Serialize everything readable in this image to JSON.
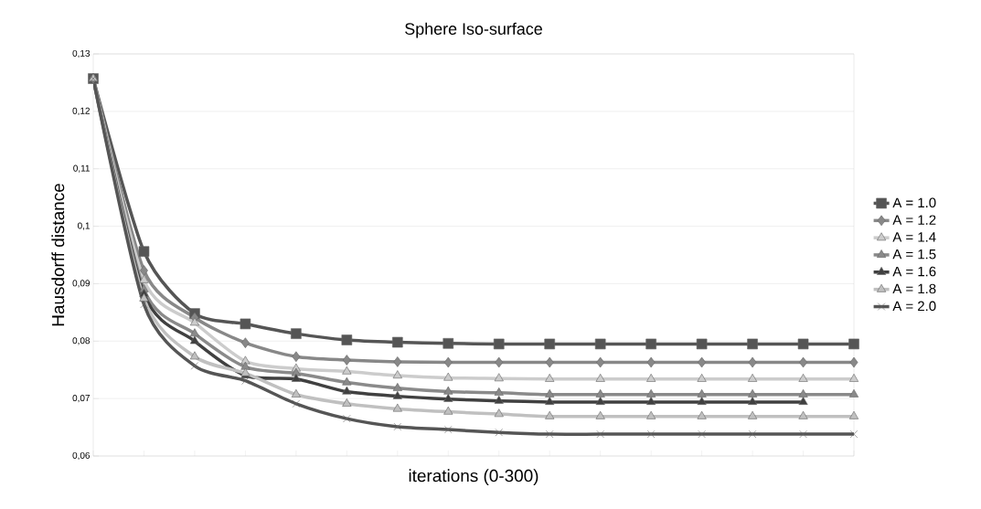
{
  "chart_data": {
    "type": "line",
    "title": "Sphere Iso-surface",
    "xlabel": "iterations (0-300)",
    "ylabel": "Hausdorff distance",
    "categories": [
      null,
      null,
      null,
      null,
      null,
      null,
      null,
      null,
      null,
      null,
      null,
      null,
      null,
      null,
      null,
      null
    ],
    "ylim": [
      0.06,
      0.13
    ],
    "yticks": [
      {
        "value": 0.06,
        "label": "0,06"
      },
      {
        "value": 0.07,
        "label": "0,07"
      },
      {
        "value": 0.08,
        "label": "0,08"
      },
      {
        "value": 0.09,
        "label": "0,09"
      },
      {
        "value": 0.1,
        "label": "0,1"
      },
      {
        "value": 0.11,
        "label": "0,11"
      },
      {
        "value": 0.12,
        "label": "0,12"
      },
      {
        "value": 0.13,
        "label": "0,13"
      }
    ],
    "grid": "y",
    "legend": "right",
    "series": [
      {
        "name": "A = 1.0",
        "color": "#555555",
        "marker": "square",
        "values": [
          0.1257,
          0.0956,
          0.0848,
          0.083,
          0.0813,
          0.0802,
          0.0798,
          0.0796,
          0.0795,
          0.0795,
          0.0795,
          0.0795,
          0.0795,
          0.0795,
          0.0795,
          0.0795
        ]
      },
      {
        "name": "A = 1.2",
        "color": "#888888",
        "marker": "diamond",
        "values": [
          0.1257,
          0.0923,
          0.0841,
          0.0797,
          0.0773,
          0.0767,
          0.0764,
          0.0763,
          0.0763,
          0.0763,
          0.0763,
          0.0763,
          0.0763,
          0.0763,
          0.0763,
          0.0763
        ]
      },
      {
        "name": "A = 1.4",
        "color": "#cccccc",
        "marker": "triangle",
        "values": [
          0.1257,
          0.0906,
          0.0832,
          0.0765,
          0.0752,
          0.0747,
          0.074,
          0.0736,
          0.0735,
          0.0734,
          0.0734,
          0.0734,
          0.0734,
          0.0734,
          0.0734,
          0.0734
        ]
      },
      {
        "name": "A = 1.5",
        "color": "#8a8a8a",
        "marker": "triangle",
        "values": [
          0.1257,
          0.089,
          0.0813,
          0.0755,
          0.0744,
          0.0728,
          0.0718,
          0.0712,
          0.071,
          0.0707,
          0.0707,
          0.0707,
          0.0707,
          0.0707,
          0.0707,
          0.0707
        ]
      },
      {
        "name": "A = 1.6",
        "color": "#404040",
        "marker": "triangle",
        "values": [
          0.1257,
          0.0882,
          0.08,
          0.074,
          0.0734,
          0.0712,
          0.0704,
          0.0699,
          0.0696,
          0.0694,
          0.0694,
          0.0694,
          0.0694,
          0.0694,
          0.0694,
          null
        ]
      },
      {
        "name": "A = 1.8",
        "color": "#c0c0c0",
        "marker": "triangle",
        "values": [
          0.1257,
          0.0874,
          0.0773,
          0.0744,
          0.0707,
          0.0691,
          0.0682,
          0.0677,
          0.0673,
          0.0669,
          0.0669,
          0.0669,
          0.0669,
          0.0669,
          0.0669,
          0.0669
        ]
      },
      {
        "name": "A = 2.0",
        "color": "#555555",
        "marker": "cross",
        "values": [
          0.1257,
          0.0864,
          0.0757,
          0.0731,
          0.0691,
          0.0665,
          0.0651,
          0.0646,
          0.0641,
          0.0638,
          0.0638,
          0.0638,
          0.0638,
          0.0638,
          0.0638,
          0.0638
        ]
      }
    ]
  }
}
